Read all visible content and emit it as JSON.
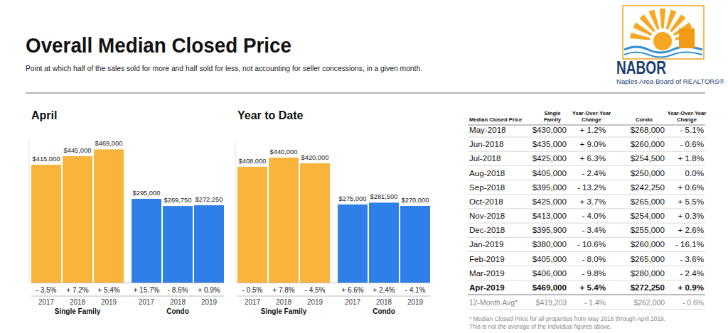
{
  "header": {
    "title": "Overall Median Closed Price",
    "subtitle": "Point at which half of the sales sold for more and half sold for less, not accounting for seller concessions, in a given month.",
    "logo_name": "NABOR",
    "logo_text": "Naples Area Board of REALTORS®"
  },
  "chart_data": [
    {
      "type": "bar",
      "title": "April",
      "categories": [
        "2017",
        "2018",
        "2019"
      ],
      "series": [
        {
          "name": "Single Family",
          "color": "#f9b43c",
          "values": [
            415000,
            445000,
            469000
          ],
          "value_labels": [
            "$415,000",
            "$445,000",
            "$469,000"
          ],
          "changes": [
            "- 3.5%",
            "+ 7.2%",
            "+ 5.4%"
          ]
        },
        {
          "name": "Condo",
          "color": "#2f7fe8",
          "values": [
            295000,
            269750,
            272250
          ],
          "value_labels": [
            "$295,000",
            "$269,750",
            "$272,250"
          ],
          "changes": [
            "+ 15.7%",
            "- 8.6%",
            "+ 0.9%"
          ]
        }
      ],
      "ylim": [
        0,
        500000
      ],
      "yticks": [],
      "grid": false,
      "data_labels": true,
      "tick_labels": "x"
    },
    {
      "type": "bar",
      "title": "Year to Date",
      "categories": [
        "2017",
        "2018",
        "2019"
      ],
      "series": [
        {
          "name": "Single Family",
          "color": "#f9b43c",
          "values": [
            408000,
            440000,
            420000
          ],
          "value_labels": [
            "$408,000",
            "$440,000",
            "$420,000"
          ],
          "changes": [
            "- 0.5%",
            "+ 7.8%",
            "- 4.5%"
          ]
        },
        {
          "name": "Condo",
          "color": "#2f7fe8",
          "values": [
            275000,
            281500,
            270000
          ],
          "value_labels": [
            "$275,000",
            "$281,500",
            "$270,000"
          ],
          "changes": [
            "+ 6.6%",
            "+ 2.4%",
            "- 4.1%"
          ]
        }
      ],
      "ylim": [
        0,
        500000
      ],
      "yticks": [],
      "grid": false,
      "data_labels": true,
      "tick_labels": "x"
    }
  ],
  "table": {
    "header": [
      [
        "Median Closed Price"
      ],
      [
        "Single",
        "Family"
      ],
      [
        "Year-Over-Year",
        "Change"
      ],
      [
        "Condo"
      ],
      [
        "Year-Over-Year",
        "Change"
      ]
    ],
    "rows": [
      [
        "May-2018",
        "$430,000",
        "+ 1.2%",
        "$268,000",
        "- 5.1%"
      ],
      [
        "Jun-2018",
        "$435,000",
        "+ 9.0%",
        "$260,000",
        "- 0.6%"
      ],
      [
        "Jul-2018",
        "$425,000",
        "+ 6.3%",
        "$254,500",
        "+ 1.8%"
      ],
      [
        "Aug-2018",
        "$405,000",
        "- 2.4%",
        "$250,000",
        "0.0%"
      ],
      [
        "Sep-2018",
        "$395,000",
        "- 13.2%",
        "$242,250",
        "+ 0.6%"
      ],
      [
        "Oct-2018",
        "$425,000",
        "+ 3.7%",
        "$265,000",
        "+ 5.5%"
      ],
      [
        "Nov-2018",
        "$413,000",
        "- 4.0%",
        "$254,000",
        "+ 0.3%"
      ],
      [
        "Dec-2018",
        "$395,900",
        "- 3.4%",
        "$255,000",
        "+ 2.6%"
      ],
      [
        "Jan-2019",
        "$380,000",
        "- 10.6%",
        "$260,000",
        "- 16.1%"
      ],
      [
        "Feb-2019",
        "$405,000",
        "- 8.0%",
        "$265,000",
        "- 3.6%"
      ],
      [
        "Mar-2019",
        "$406,000",
        "- 9.8%",
        "$280,000",
        "- 2.4%"
      ],
      [
        "Apr-2019",
        "$469,000",
        "+ 5.4%",
        "$272,250",
        "+ 0.9%"
      ]
    ],
    "summary_row": [
      "12-Month Avg*",
      "$419,203",
      "- 1.4%",
      "$262,000",
      "- 0.6%"
    ],
    "footnote": [
      "* Median Closed Price for all properties from May 2018 through April 2019.",
      "This is not the average of the individual figures above."
    ]
  }
}
